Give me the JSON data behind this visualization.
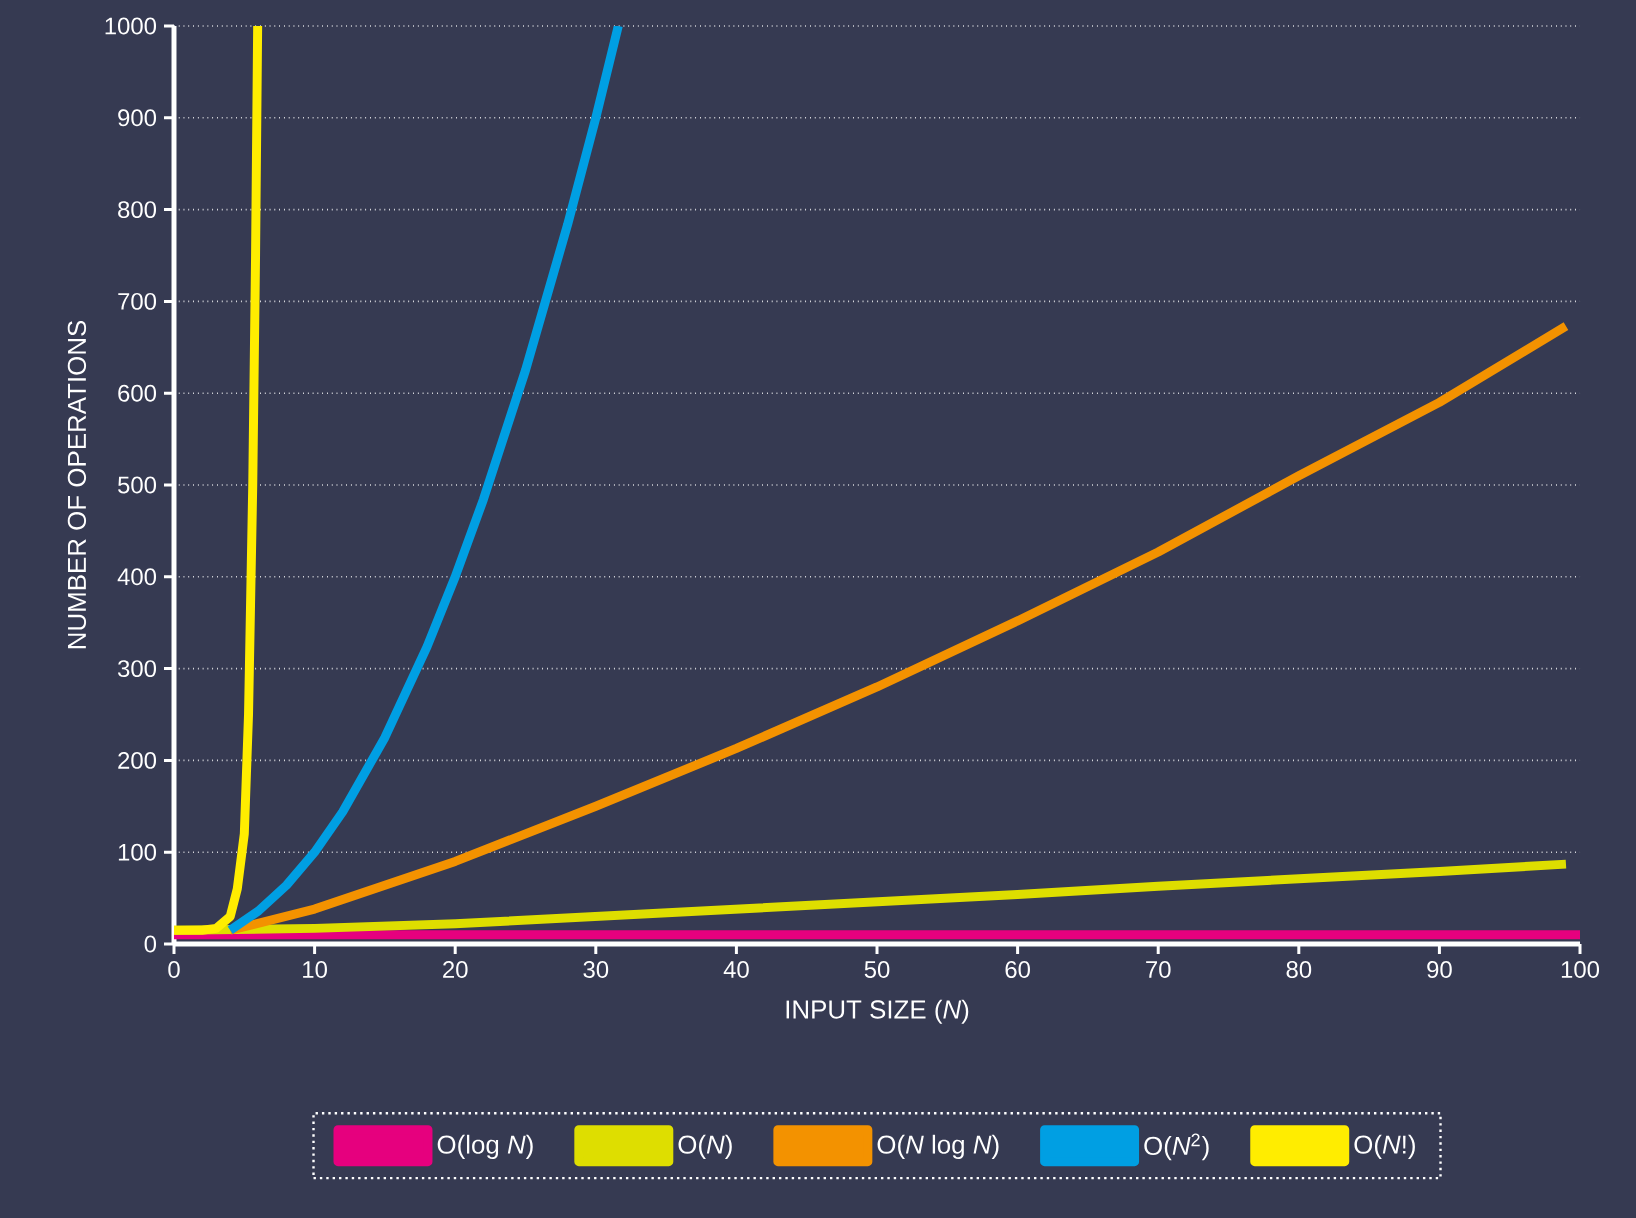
{
  "chart_data": {
    "type": "line",
    "xlabel": "INPUT SIZE (*N*)",
    "ylabel": "NUMBER OF OPERATIONS",
    "xlim": [
      0,
      100
    ],
    "ylim": [
      0,
      1000
    ],
    "xticks": [
      0,
      10,
      20,
      30,
      40,
      50,
      60,
      70,
      80,
      90,
      100
    ],
    "yticks": [
      0,
      100,
      200,
      300,
      400,
      500,
      600,
      700,
      800,
      900,
      1000
    ],
    "grid": "y",
    "legend": "bottom",
    "line_style": "solid",
    "series": [
      {
        "name": "O(log *N*)",
        "color": "#e6007e",
        "x": [
          0,
          100
        ],
        "values": [
          10,
          10
        ]
      },
      {
        "name": "O(*N*)",
        "color": "#dede00",
        "x": [
          0,
          10,
          20,
          30,
          40,
          50,
          60,
          70,
          80,
          90,
          99
        ],
        "values": [
          15,
          17,
          22,
          30,
          38,
          46,
          54,
          63,
          71,
          79,
          87
        ]
      },
      {
        "name": "O(*N* log *N*)",
        "color": "#f39200",
        "x": [
          4,
          10,
          20,
          30,
          40,
          50,
          60,
          70,
          80,
          90,
          99
        ],
        "values": [
          15,
          38,
          90,
          150,
          213,
          280,
          352,
          427,
          510,
          590,
          673
        ]
      },
      {
        "name": "O(*N*$^{2}$)",
        "color": "#009fe3",
        "x": [
          4,
          6,
          8,
          10,
          12,
          15,
          18,
          20,
          22,
          25,
          28,
          30,
          31.6
        ],
        "values": [
          15,
          36,
          64,
          100,
          144,
          225,
          324,
          400,
          484,
          625,
          784,
          900,
          1000
        ]
      },
      {
        "name": "O(*N*!)",
        "color": "#ffed00",
        "x": [
          0,
          2,
          3,
          4,
          4.5,
          5,
          5.3,
          5.6,
          5.8,
          5.95
        ],
        "values": [
          15,
          15,
          17,
          30,
          60,
          120,
          250,
          500,
          750,
          1000
        ]
      }
    ]
  }
}
